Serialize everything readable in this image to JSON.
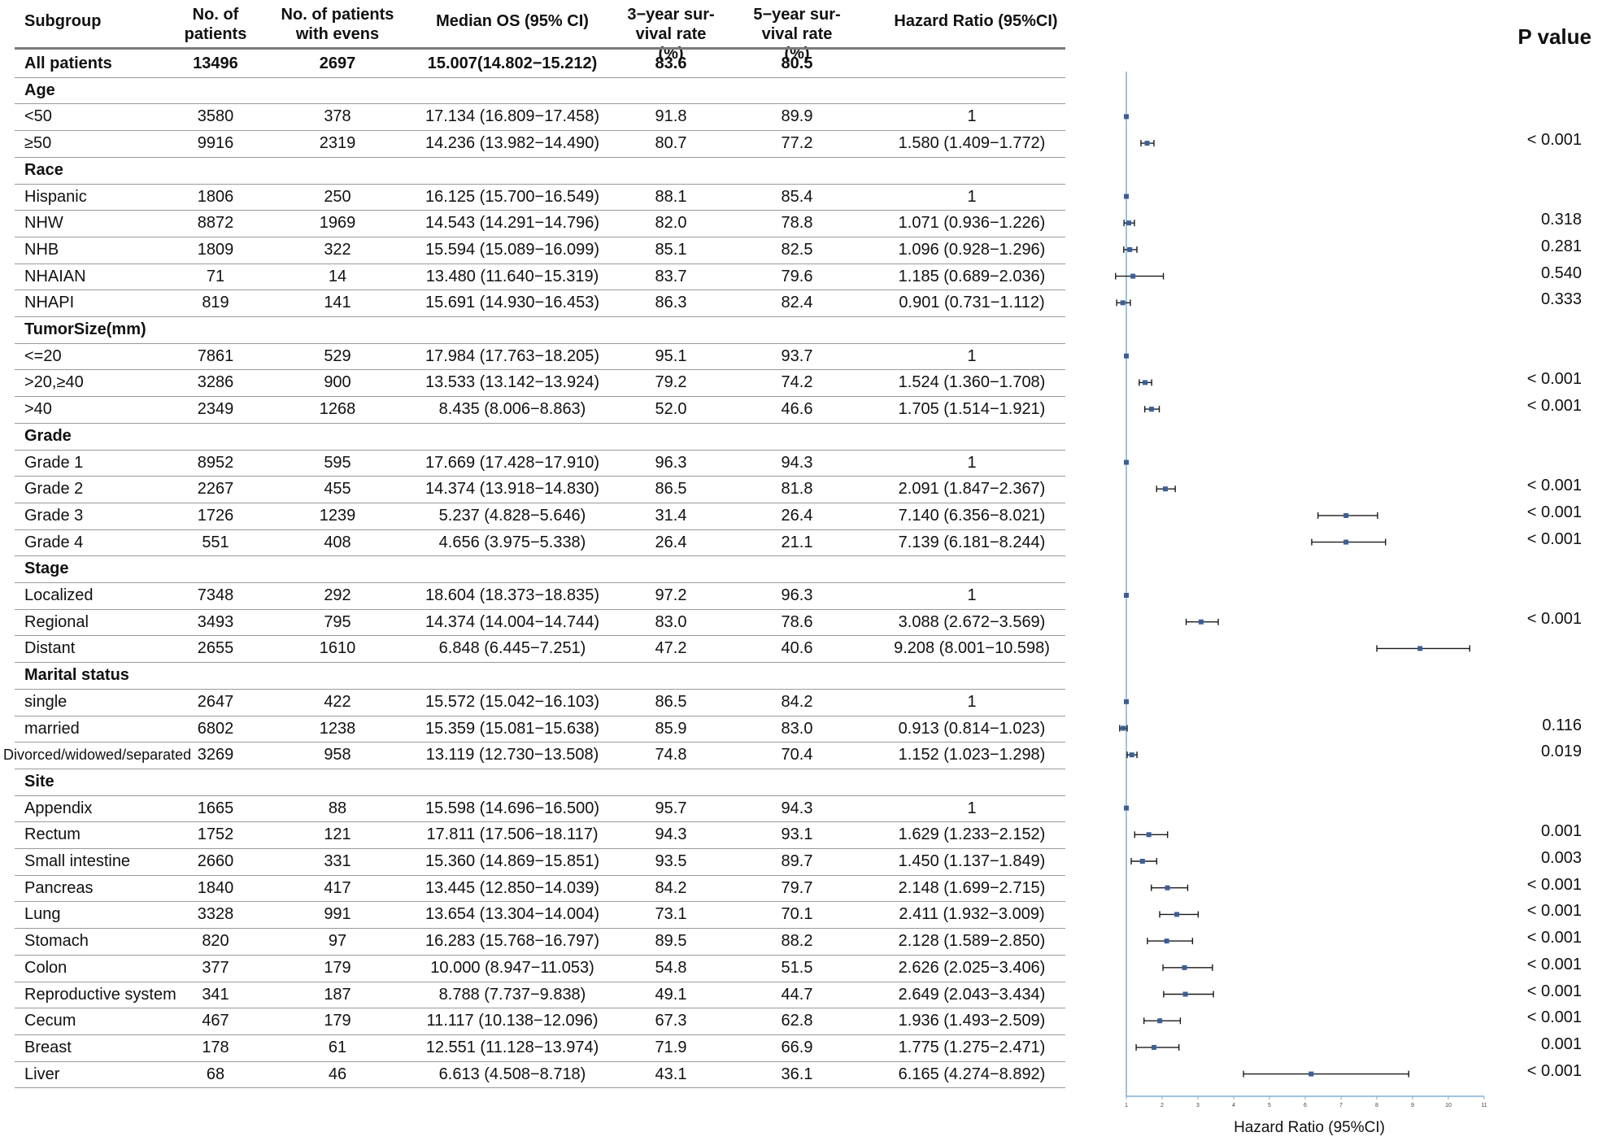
{
  "headers": {
    "subgroup": "Subgroup",
    "n_patients_1": "No. of",
    "n_patients_2": "patients",
    "n_events_1": "No. of patients",
    "n_events_2": "with evens",
    "median_os": "Median OS (95% CI)",
    "surv3_1": "3−year sur-",
    "surv3_2": "vival rate (%)",
    "surv5_1": "5−year sur-",
    "surv5_2": "vival rate (%)",
    "hr": "Hazard Ratio (95%CI)",
    "pvalue": "P value"
  },
  "rows": [
    {
      "type": "total",
      "label": "All patients",
      "n": "13496",
      "events": "2697",
      "os": "15.007(14.802−15.212)",
      "s3": "83.6",
      "s5": "80.5",
      "hr_text": "",
      "p": ""
    },
    {
      "type": "group",
      "label": "Age"
    },
    {
      "type": "item",
      "label": "<50",
      "n": "3580",
      "events": "378",
      "os": "17.134 (16.809−17.458)",
      "s3": "91.8",
      "s5": "89.9",
      "hr_text": "1",
      "p": "",
      "hr": 1,
      "lo": 1,
      "hi": 1
    },
    {
      "type": "item",
      "label": "≥50",
      "n": "9916",
      "events": "2319",
      "os": "14.236 (13.982−14.490)",
      "s3": "80.7",
      "s5": "77.2",
      "hr_text": "1.580 (1.409−1.772)",
      "p": "< 0.001",
      "hr": 1.58,
      "lo": 1.409,
      "hi": 1.772
    },
    {
      "type": "group",
      "label": "Race"
    },
    {
      "type": "item",
      "label": "Hispanic",
      "n": "1806",
      "events": "250",
      "os": "16.125 (15.700−16.549)",
      "s3": "88.1",
      "s5": "85.4",
      "hr_text": "1",
      "p": "",
      "hr": 1,
      "lo": 1,
      "hi": 1
    },
    {
      "type": "item",
      "label": "NHW",
      "n": "8872",
      "events": "1969",
      "os": "14.543 (14.291−14.796)",
      "s3": "82.0",
      "s5": "78.8",
      "hr_text": "1.071 (0.936−1.226)",
      "p": "0.318",
      "hr": 1.071,
      "lo": 0.936,
      "hi": 1.226
    },
    {
      "type": "item",
      "label": "NHB",
      "n": "1809",
      "events": "322",
      "os": "15.594 (15.089−16.099)",
      "s3": "85.1",
      "s5": "82.5",
      "hr_text": "1.096 (0.928−1.296)",
      "p": "0.281",
      "hr": 1.096,
      "lo": 0.928,
      "hi": 1.296
    },
    {
      "type": "item",
      "label": "NHAIAN",
      "n": "71",
      "events": "14",
      "os": "13.480 (11.640−15.319)",
      "s3": "83.7",
      "s5": "79.6",
      "hr_text": "1.185 (0.689−2.036)",
      "p": "0.540",
      "hr": 1.185,
      "lo": 0.689,
      "hi": 2.036
    },
    {
      "type": "item",
      "label": "NHAPI",
      "n": "819",
      "events": "141",
      "os": "15.691 (14.930−16.453)",
      "s3": "86.3",
      "s5": "82.4",
      "hr_text": "0.901 (0.731−1.112)",
      "p": "0.333",
      "hr": 0.901,
      "lo": 0.731,
      "hi": 1.112
    },
    {
      "type": "group",
      "label": "TumorSize(mm)"
    },
    {
      "type": "item",
      "label": "<=20",
      "n": "7861",
      "events": "529",
      "os": "17.984 (17.763−18.205)",
      "s3": "95.1",
      "s5": "93.7",
      "hr_text": "1",
      "p": "",
      "hr": 1,
      "lo": 1,
      "hi": 1
    },
    {
      "type": "item",
      "label": ">20,≥40",
      "n": "3286",
      "events": "900",
      "os": "13.533 (13.142−13.924)",
      "s3": "79.2",
      "s5": "74.2",
      "hr_text": "1.524 (1.360−1.708)",
      "p": "< 0.001",
      "hr": 1.524,
      "lo": 1.36,
      "hi": 1.708
    },
    {
      "type": "item",
      "label": ">40",
      "n": "2349",
      "events": "1268",
      "os": "8.435 (8.006−8.863)",
      "s3": "52.0",
      "s5": "46.6",
      "hr_text": "1.705 (1.514−1.921)",
      "p": "< 0.001",
      "hr": 1.705,
      "lo": 1.514,
      "hi": 1.921
    },
    {
      "type": "group",
      "label": "Grade"
    },
    {
      "type": "item",
      "label": "Grade 1",
      "n": "8952",
      "events": "595",
      "os": "17.669 (17.428−17.910)",
      "s3": "96.3",
      "s5": "94.3",
      "hr_text": "1",
      "p": "",
      "hr": 1,
      "lo": 1,
      "hi": 1
    },
    {
      "type": "item",
      "label": "Grade 2",
      "n": "2267",
      "events": "455",
      "os": "14.374 (13.918−14.830)",
      "s3": "86.5",
      "s5": "81.8",
      "hr_text": "2.091 (1.847−2.367)",
      "p": "< 0.001",
      "hr": 2.091,
      "lo": 1.847,
      "hi": 2.367
    },
    {
      "type": "item",
      "label": "Grade 3",
      "n": "1726",
      "events": "1239",
      "os": "5.237 (4.828−5.646)",
      "s3": "31.4",
      "s5": "26.4",
      "hr_text": "7.140 (6.356−8.021)",
      "p": "< 0.001",
      "hr": 7.14,
      "lo": 6.356,
      "hi": 8.021
    },
    {
      "type": "item",
      "label": "Grade 4",
      "n": "551",
      "events": "408",
      "os": "4.656 (3.975−5.338)",
      "s3": "26.4",
      "s5": "21.1",
      "hr_text": "7.139 (6.181−8.244)",
      "p": "< 0.001",
      "hr": 7.139,
      "lo": 6.181,
      "hi": 8.244
    },
    {
      "type": "group",
      "label": "Stage"
    },
    {
      "type": "item",
      "label": "Localized",
      "n": "7348",
      "events": "292",
      "os": "18.604 (18.373−18.835)",
      "s3": "97.2",
      "s5": "96.3",
      "hr_text": "1",
      "p": "",
      "hr": 1,
      "lo": 1,
      "hi": 1
    },
    {
      "type": "item",
      "label": "Regional",
      "n": "3493",
      "events": "795",
      "os": "14.374 (14.004−14.744)",
      "s3": "83.0",
      "s5": "78.6",
      "hr_text": "3.088 (2.672−3.569)",
      "p": "< 0.001",
      "hr": 3.088,
      "lo": 2.672,
      "hi": 3.569
    },
    {
      "type": "item",
      "label": "Distant",
      "n": "2655",
      "events": "1610",
      "os": "6.848 (6.445−7.251)",
      "s3": "47.2",
      "s5": "40.6",
      "hr_text": "9.208 (8.001−10.598)",
      "p": "",
      "hr": 9.208,
      "lo": 8.001,
      "hi": 10.598
    },
    {
      "type": "group",
      "label": "Marital status"
    },
    {
      "type": "item",
      "label": "single",
      "n": "2647",
      "events": "422",
      "os": "15.572 (15.042−16.103)",
      "s3": "86.5",
      "s5": "84.2",
      "hr_text": "1",
      "p": "",
      "hr": 1,
      "lo": 1,
      "hi": 1
    },
    {
      "type": "item",
      "label": "married",
      "n": "6802",
      "events": "1238",
      "os": "15.359 (15.081−15.638)",
      "s3": "85.9",
      "s5": "83.0",
      "hr_text": "0.913 (0.814−1.023)",
      "p": "0.116",
      "hr": 0.913,
      "lo": 0.814,
      "hi": 1.023
    },
    {
      "type": "item",
      "label": "Divorced/widowed/separated",
      "n": "3269",
      "events": "958",
      "os": "13.119 (12.730−13.508)",
      "s3": "74.8",
      "s5": "70.4",
      "hr_text": "1.152 (1.023−1.298)",
      "p": "0.019",
      "hr": 1.152,
      "lo": 1.023,
      "hi": 1.298
    },
    {
      "type": "group",
      "label": "Site"
    },
    {
      "type": "item",
      "label": "Appendix",
      "n": "1665",
      "events": "88",
      "os": "15.598 (14.696−16.500)",
      "s3": "95.7",
      "s5": "94.3",
      "hr_text": "1",
      "p": "",
      "hr": 1,
      "lo": 1,
      "hi": 1
    },
    {
      "type": "item",
      "label": "Rectum",
      "n": "1752",
      "events": "121",
      "os": "17.811 (17.506−18.117)",
      "s3": "94.3",
      "s5": "93.1",
      "hr_text": "1.629 (1.233−2.152)",
      "p": "0.001",
      "hr": 1.629,
      "lo": 1.233,
      "hi": 2.152
    },
    {
      "type": "item",
      "label": "Small intestine",
      "n": "2660",
      "events": "331",
      "os": "15.360 (14.869−15.851)",
      "s3": "93.5",
      "s5": "89.7",
      "hr_text": "1.450 (1.137−1.849)",
      "p": "0.003",
      "hr": 1.45,
      "lo": 1.137,
      "hi": 1.849
    },
    {
      "type": "item",
      "label": "Pancreas",
      "n": "1840",
      "events": "417",
      "os": "13.445 (12.850−14.039)",
      "s3": "84.2",
      "s5": "79.7",
      "hr_text": "2.148 (1.699−2.715)",
      "p": "< 0.001",
      "hr": 2.148,
      "lo": 1.699,
      "hi": 2.715
    },
    {
      "type": "item",
      "label": "Lung",
      "n": "3328",
      "events": "991",
      "os": "13.654 (13.304−14.004)",
      "s3": "73.1",
      "s5": "70.1",
      "hr_text": "2.411 (1.932−3.009)",
      "p": "< 0.001",
      "hr": 2.411,
      "lo": 1.932,
      "hi": 3.009
    },
    {
      "type": "item",
      "label": "Stomach",
      "n": "820",
      "events": "97",
      "os": "16.283 (15.768−16.797)",
      "s3": "89.5",
      "s5": "88.2",
      "hr_text": "2.128 (1.589−2.850)",
      "p": "< 0.001",
      "hr": 2.128,
      "lo": 1.589,
      "hi": 2.85
    },
    {
      "type": "item",
      "label": "Colon",
      "n": "377",
      "events": "179",
      "os": "10.000 (8.947−11.053)",
      "s3": "54.8",
      "s5": "51.5",
      "hr_text": "2.626 (2.025−3.406)",
      "p": "< 0.001",
      "hr": 2.626,
      "lo": 2.025,
      "hi": 3.406
    },
    {
      "type": "item",
      "label": "Reproductive system",
      "n": "341",
      "events": "187",
      "os": "8.788 (7.737−9.838)",
      "s3": "49.1",
      "s5": "44.7",
      "hr_text": "2.649 (2.043−3.434)",
      "p": "< 0.001",
      "hr": 2.649,
      "lo": 2.043,
      "hi": 3.434
    },
    {
      "type": "item",
      "label": "Cecum",
      "n": "467",
      "events": "179",
      "os": "11.117 (10.138−12.096)",
      "s3": "67.3",
      "s5": "62.8",
      "hr_text": "1.936 (1.493−2.509)",
      "p": "< 0.001",
      "hr": 1.936,
      "lo": 1.493,
      "hi": 2.509
    },
    {
      "type": "item",
      "label": "Breast",
      "n": "178",
      "events": "61",
      "os": "12.551 (11.128−13.974)",
      "s3": "71.9",
      "s5": "66.9",
      "hr_text": "1.775 (1.275−2.471)",
      "p": "0.001",
      "hr": 1.775,
      "lo": 1.275,
      "hi": 2.471
    },
    {
      "type": "item",
      "label": "Liver",
      "n": "68",
      "events": "46",
      "os": "6.613 (4.508−8.718)",
      "s3": "43.1",
      "s5": "36.1",
      "hr_text": "6.165 (4.274−8.892)",
      "p": "< 0.001",
      "hr": 6.165,
      "lo": 4.274,
      "hi": 8.892
    }
  ],
  "chart_data": {
    "type": "forest",
    "xlabel": "Hazard Ratio (95%CI)",
    "xlim": [
      1,
      11
    ],
    "ticks": [
      1,
      2,
      3,
      4,
      5,
      6,
      7,
      8,
      9,
      10,
      11
    ],
    "reference_line": 1,
    "colors": {
      "point": "#3a5f9a",
      "axis": "#7fb0d8",
      "whisker": "#1a1a1a"
    }
  }
}
